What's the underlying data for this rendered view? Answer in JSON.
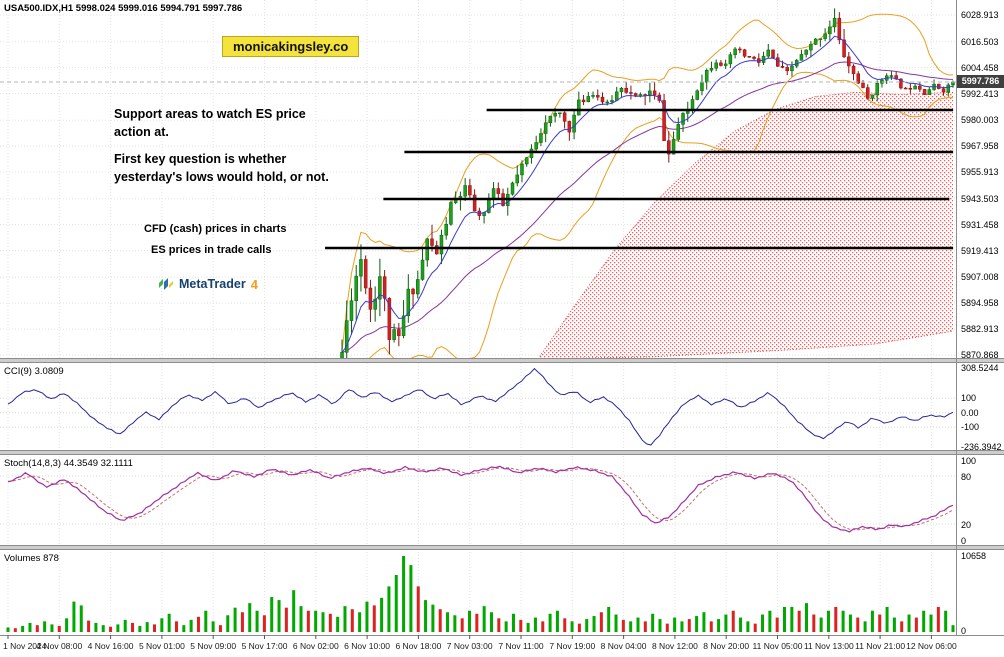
{
  "window": {
    "symbol_header": "USA500.IDX,H1  5998.024 5999.016 5994.791 5997.786"
  },
  "branding": {
    "watermark": "monicakingsley.co"
  },
  "annotations": {
    "support_note_lines": [
      "Support areas to watch ES price",
      "action at.",
      "First key question is whether",
      "yesterday's lows would hold, or not."
    ],
    "cfd_note": "CFD (cash) prices in charts",
    "es_note": "ES prices in trade calls",
    "logo_text": "MetaTrader",
    "logo_number": "4"
  },
  "colors": {
    "candle_up": "#1ba11b",
    "candle_up_border": "#0b5c0b",
    "candle_down": "#d42020",
    "candle_down_border": "#8a1010",
    "bollinger": "#e8a020",
    "ma_fast": "#3a3ad0",
    "ma_slow": "#8a35a0",
    "ichimoku_cloud": "#e85050",
    "cloud_border": "#e23535",
    "cci_line": "#26269a",
    "stoch_main": "#a030a0",
    "stoch_signal": "#c87070",
    "volume_up": "#00a800",
    "volume_down": "#dd2222",
    "support_line": "#000000",
    "watermark_bg": "#f4e33c",
    "grid": "#e3e3e3",
    "separator": "#cdcdcd",
    "axis_line": "#8c8c8c"
  },
  "price_axis": {
    "labels": [
      "6028.913",
      "6016.503",
      "6004.458",
      "5992.413",
      "5980.003",
      "5967.958",
      "5955.913",
      "5943.503",
      "5931.458",
      "5919.413",
      "5907.008",
      "5894.958",
      "5882.913",
      "5870.868"
    ],
    "current_price": "5997.786"
  },
  "time_axis": {
    "labels": [
      "1 Nov 2024",
      "4 Nov 08:00",
      "4 Nov 16:00",
      "5 Nov 01:00",
      "5 Nov 09:00",
      "5 Nov 17:00",
      "6 Nov 02:00",
      "6 Nov 10:00",
      "6 Nov 18:00",
      "7 Nov 03:00",
      "7 Nov 11:00",
      "7 Nov 19:00",
      "8 Nov 04:00",
      "8 Nov 12:00",
      "8 Nov 20:00",
      "11 Nov 05:00",
      "11 Nov 13:00",
      "11 Nov 21:00",
      "12 Nov 06:00"
    ]
  },
  "support_lines": [
    {
      "price": 5984.75,
      "x1": 0.509,
      "x2": 0.997
    },
    {
      "price": 5965.23,
      "x1": 0.423,
      "x2": 0.997
    },
    {
      "price": 5943.38,
      "x1": 0.401,
      "x2": 0.993
    },
    {
      "price": 5920.6,
      "x1": 0.34,
      "x2": 0.997
    }
  ],
  "indicators": {
    "cci": {
      "header": "CCI(9) 3.0809",
      "max": 308.5244,
      "min": -236.3942,
      "levels": [
        100,
        0,
        -100
      ],
      "axis_labels": [
        "308.5244",
        "100",
        "0.00",
        "-100",
        "-236.3942"
      ],
      "keyframes": [
        [
          0,
          55
        ],
        [
          0.015,
          140
        ],
        [
          0.03,
          160
        ],
        [
          0.045,
          95
        ],
        [
          0.06,
          135
        ],
        [
          0.075,
          55
        ],
        [
          0.09,
          -40
        ],
        [
          0.105,
          -105
        ],
        [
          0.118,
          -150
        ],
        [
          0.132,
          -70
        ],
        [
          0.145,
          5
        ],
        [
          0.16,
          -45
        ],
        [
          0.175,
          55
        ],
        [
          0.19,
          125
        ],
        [
          0.205,
          85
        ],
        [
          0.22,
          145
        ],
        [
          0.235,
          55
        ],
        [
          0.25,
          105
        ],
        [
          0.265,
          35
        ],
        [
          0.28,
          85
        ],
        [
          0.3,
          140
        ],
        [
          0.315,
          75
        ],
        [
          0.33,
          125
        ],
        [
          0.345,
          55
        ],
        [
          0.36,
          165
        ],
        [
          0.375,
          105
        ],
        [
          0.39,
          145
        ],
        [
          0.405,
          75
        ],
        [
          0.42,
          115
        ],
        [
          0.435,
          165
        ],
        [
          0.45,
          95
        ],
        [
          0.465,
          135
        ],
        [
          0.48,
          55
        ],
        [
          0.5,
          120
        ],
        [
          0.515,
          75
        ],
        [
          0.53,
          150
        ],
        [
          0.545,
          230
        ],
        [
          0.558,
          308.5
        ],
        [
          0.572,
          200
        ],
        [
          0.585,
          120
        ],
        [
          0.6,
          150
        ],
        [
          0.615,
          70
        ],
        [
          0.63,
          110
        ],
        [
          0.645,
          40
        ],
        [
          0.658,
          -60
        ],
        [
          0.668,
          -160
        ],
        [
          0.678,
          -236.4
        ],
        [
          0.69,
          -150
        ],
        [
          0.702,
          -40
        ],
        [
          0.715,
          60
        ],
        [
          0.73,
          120
        ],
        [
          0.745,
          55
        ],
        [
          0.76,
          100
        ],
        [
          0.775,
          35
        ],
        [
          0.79,
          80
        ],
        [
          0.805,
          140
        ],
        [
          0.82,
          55
        ],
        [
          0.835,
          -55
        ],
        [
          0.85,
          -140
        ],
        [
          0.862,
          -180
        ],
        [
          0.875,
          -120
        ],
        [
          0.888,
          -55
        ],
        [
          0.9,
          -105
        ],
        [
          0.915,
          -35
        ],
        [
          0.93,
          -75
        ],
        [
          0.945,
          -25
        ],
        [
          0.96,
          -55
        ],
        [
          0.975,
          -15
        ],
        [
          0.99,
          -30
        ],
        [
          1,
          3.1
        ]
      ]
    },
    "stoch": {
      "header": "Stoch(14,8,3) 44.3549 32.1111",
      "levels": [
        80,
        20
      ],
      "axis_labels": [
        "100",
        "80",
        "20",
        "0"
      ],
      "keyframes": [
        [
          0,
          72
        ],
        [
          0.02,
          84
        ],
        [
          0.04,
          66
        ],
        [
          0.06,
          76
        ],
        [
          0.08,
          58
        ],
        [
          0.1,
          38
        ],
        [
          0.12,
          24
        ],
        [
          0.14,
          34
        ],
        [
          0.16,
          52
        ],
        [
          0.18,
          68
        ],
        [
          0.2,
          84
        ],
        [
          0.22,
          74
        ],
        [
          0.24,
          87
        ],
        [
          0.26,
          79
        ],
        [
          0.28,
          89
        ],
        [
          0.3,
          81
        ],
        [
          0.32,
          88
        ],
        [
          0.34,
          77
        ],
        [
          0.36,
          85
        ],
        [
          0.38,
          90
        ],
        [
          0.4,
          83
        ],
        [
          0.42,
          91
        ],
        [
          0.44,
          85
        ],
        [
          0.46,
          90
        ],
        [
          0.48,
          81
        ],
        [
          0.5,
          88
        ],
        [
          0.52,
          92
        ],
        [
          0.54,
          84
        ],
        [
          0.56,
          90
        ],
        [
          0.58,
          85
        ],
        [
          0.6,
          91
        ],
        [
          0.62,
          87
        ],
        [
          0.64,
          79
        ],
        [
          0.655,
          58
        ],
        [
          0.67,
          33
        ],
        [
          0.685,
          21
        ],
        [
          0.7,
          29
        ],
        [
          0.715,
          48
        ],
        [
          0.73,
          68
        ],
        [
          0.75,
          79
        ],
        [
          0.77,
          85
        ],
        [
          0.79,
          77
        ],
        [
          0.81,
          84
        ],
        [
          0.83,
          73
        ],
        [
          0.845,
          52
        ],
        [
          0.86,
          28
        ],
        [
          0.875,
          15
        ],
        [
          0.89,
          11
        ],
        [
          0.905,
          17
        ],
        [
          0.92,
          13
        ],
        [
          0.935,
          19
        ],
        [
          0.95,
          17
        ],
        [
          0.965,
          24
        ],
        [
          0.98,
          30
        ],
        [
          1,
          44.35
        ]
      ]
    },
    "volumes": {
      "header": "Volumes 878",
      "max_label": "10658",
      "min_label": "0",
      "bars": [
        6,
        -5,
        8,
        12,
        -9,
        14,
        10,
        -8,
        18,
        40,
        35,
        -15,
        12,
        9,
        -7,
        10,
        16,
        -12,
        8,
        13,
        -10,
        18,
        24,
        -14,
        9,
        16,
        -20,
        28,
        14,
        -9,
        22,
        32,
        -26,
        38,
        28,
        -22,
        46,
        42,
        -32,
        55,
        34,
        -28,
        28,
        26,
        -24,
        20,
        34,
        -30,
        26,
        40,
        -35,
        45,
        60,
        75,
        100,
        88,
        -60,
        42,
        36,
        -30,
        26,
        22,
        -18,
        28,
        -24,
        34,
        26,
        -18,
        14,
        24,
        -16,
        12,
        19,
        -14,
        24,
        28,
        -18,
        14,
        -11,
        17,
        21,
        -26,
        33,
        23,
        -16,
        14,
        19,
        -14,
        24,
        17,
        -11,
        19,
        14,
        -17,
        21,
        26,
        -14,
        17,
        23,
        -28,
        19,
        14,
        -11,
        23,
        28,
        -19,
        33,
        33,
        -28,
        38,
        -23,
        19,
        28,
        -33,
        28,
        23,
        -19,
        14,
        28,
        -23,
        33,
        19,
        -14,
        23,
        -19,
        28,
        23,
        -33,
        28,
        9
      ]
    }
  },
  "chart_data": {
    "type": "candlestick",
    "symbol": "USA500.IDX",
    "timeframe": "H1",
    "title": "USA500.IDX,H1",
    "ohlc_current": {
      "open": 5998.024,
      "high": 5999.016,
      "low": 5994.791,
      "close": 5997.786
    },
    "y_axis_top_price": 6028.913,
    "y_axis_bottom_price": 5870.868,
    "candle_count": 130,
    "price_keyframes": [
      [
        0,
        5872
      ],
      [
        1,
        5886
      ],
      [
        2,
        5900
      ],
      [
        3,
        5908
      ],
      [
        4,
        5916
      ],
      [
        5,
        5905
      ],
      [
        6,
        5893
      ],
      [
        7,
        5900
      ],
      [
        8,
        5908
      ],
      [
        9,
        5895
      ],
      [
        10,
        5880
      ],
      [
        12,
        5878
      ],
      [
        14,
        5899
      ],
      [
        16,
        5906
      ],
      [
        18,
        5924
      ],
      [
        20,
        5918
      ],
      [
        23,
        5940
      ],
      [
        26,
        5948
      ],
      [
        29,
        5934
      ],
      [
        32,
        5948
      ],
      [
        34,
        5940
      ],
      [
        36,
        5950
      ],
      [
        38,
        5958
      ],
      [
        40,
        5966
      ],
      [
        43,
        5980
      ],
      [
        46,
        5983
      ],
      [
        48,
        5976
      ],
      [
        50,
        5988
      ],
      [
        53,
        5993
      ],
      [
        56,
        5987
      ],
      [
        59,
        5996
      ],
      [
        62,
        5990
      ],
      [
        65,
        5993
      ],
      [
        67,
        5988
      ],
      [
        68,
        5972
      ],
      [
        69,
        5964
      ],
      [
        71,
        5978
      ],
      [
        73,
        5985
      ],
      [
        75,
        5995
      ],
      [
        77,
        6003
      ],
      [
        79,
        6008
      ],
      [
        81,
        6005
      ],
      [
        83,
        6013
      ],
      [
        85,
        6010
      ],
      [
        88,
        6007
      ],
      [
        90,
        6012
      ],
      [
        92,
        6005
      ],
      [
        94,
        6002
      ],
      [
        96,
        6008
      ],
      [
        98,
        6012
      ],
      [
        100,
        6017
      ],
      [
        102,
        6021
      ],
      [
        104,
        6027
      ],
      [
        105,
        6016
      ],
      [
        107,
        6005
      ],
      [
        109,
        5998
      ],
      [
        111,
        5990
      ],
      [
        113,
        5996
      ],
      [
        115,
        6002
      ],
      [
        117,
        5998
      ],
      [
        119,
        5994
      ],
      [
        121,
        5997
      ],
      [
        123,
        5993
      ],
      [
        125,
        5996
      ],
      [
        127,
        5994
      ],
      [
        129,
        5997.786
      ]
    ],
    "volatility_keyframes": [
      [
        0,
        16
      ],
      [
        8,
        14
      ],
      [
        14,
        12
      ],
      [
        20,
        9
      ],
      [
        30,
        7
      ],
      [
        45,
        6
      ],
      [
        60,
        5
      ],
      [
        66,
        8
      ],
      [
        70,
        6
      ],
      [
        80,
        5
      ],
      [
        95,
        4
      ],
      [
        103,
        6
      ],
      [
        106,
        8
      ],
      [
        110,
        5
      ],
      [
        120,
        4
      ],
      [
        129,
        3
      ]
    ],
    "ichimoku_cloud": {
      "span_a": [
        [
          538,
          5869
        ],
        [
          575,
          5894
        ],
        [
          615,
          5920
        ],
        [
          655,
          5942
        ],
        [
          695,
          5960
        ],
        [
          735,
          5975
        ],
        [
          775,
          5985
        ],
        [
          815,
          5991
        ],
        [
          855,
          5993
        ],
        [
          900,
          5992
        ],
        [
          953,
          5993
        ]
      ],
      "span_b": [
        [
          538,
          5869
        ],
        [
          650,
          5870
        ],
        [
          780,
          5873
        ],
        [
          875,
          5876
        ],
        [
          953,
          5882
        ]
      ]
    }
  }
}
